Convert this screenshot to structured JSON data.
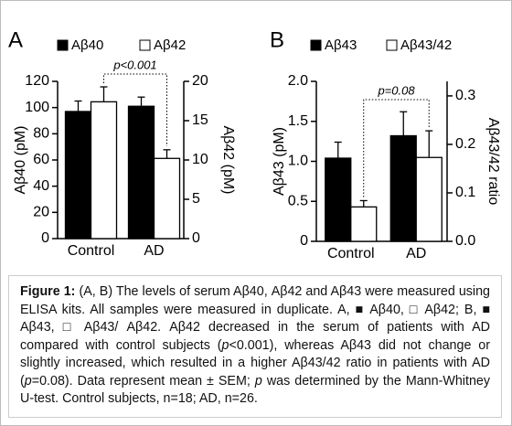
{
  "chart_data": [
    {
      "type": "bar",
      "panel": "A",
      "categories": [
        "Control",
        "AD"
      ],
      "ylabel": "Aβ40 (pM)",
      "y2label": "Aβ42 (pM)",
      "ylim": [
        0,
        120
      ],
      "yticks": [
        0,
        20,
        40,
        60,
        80,
        100,
        120
      ],
      "y2lim": [
        0,
        20
      ],
      "y2ticks": [
        0,
        5,
        10,
        15,
        20
      ],
      "series": [
        {
          "name": "Aβ40",
          "color": "#000000",
          "values": [
            97,
            101
          ],
          "errors": [
            8,
            7
          ]
        },
        {
          "name": "Aβ42",
          "color": "#ffffff",
          "axis": "y2",
          "values": [
            17.4,
            10.2
          ],
          "errors": [
            1.9,
            1.1
          ]
        }
      ],
      "annotation": "p<0.001"
    },
    {
      "type": "bar",
      "panel": "B",
      "categories": [
        "Control",
        "AD"
      ],
      "ylabel": "Aβ43 (pM)",
      "y2label": "Aβ43/42 ratio",
      "ylim": [
        0,
        2.0
      ],
      "yticks": [
        0,
        0.5,
        {
          "value": 1.0,
          "label": "1.0"
        },
        1.5,
        {
          "value": 2.0,
          "label": "2.0"
        }
      ],
      "y2lim": [
        0,
        0.33
      ],
      "y2ticks": [
        {
          "value": 0,
          "label": "0.0"
        },
        0.1,
        0.2,
        0.3
      ],
      "series": [
        {
          "name": "Aβ43",
          "color": "#000000",
          "values": [
            1.04,
            1.32
          ],
          "errors": [
            0.2,
            0.3
          ]
        },
        {
          "name": "Aβ43/42",
          "color": "#ffffff",
          "axis": "y2",
          "values": [
            0.071,
            0.173
          ],
          "errors": [
            0.013,
            0.055
          ]
        }
      ],
      "annotation": "p=0.08"
    }
  ],
  "caption": {
    "label": "Figure 1:",
    "parts": [
      "(A, B) The levels of serum Aβ40, Aβ42 and Aβ43 were measured using ELISA kits. All samples were measured in duplicate. A, ■ Aβ40, □ Aβ42; B, ■ Aβ43, □ Aβ43/ Aβ42. Aβ42 decreased in the serum of patients with AD compared with control subjects (",
      "p",
      "<0.001), whereas Aβ43 did not change or slightly increased, which resulted in a higher Aβ43/42 ratio in patients with AD (",
      "p",
      "=0.08). Data represent mean ± SEM; ",
      "p",
      " was determined by the Mann-Whitney U-test. Control subjects, n=18; AD, n=26."
    ]
  }
}
